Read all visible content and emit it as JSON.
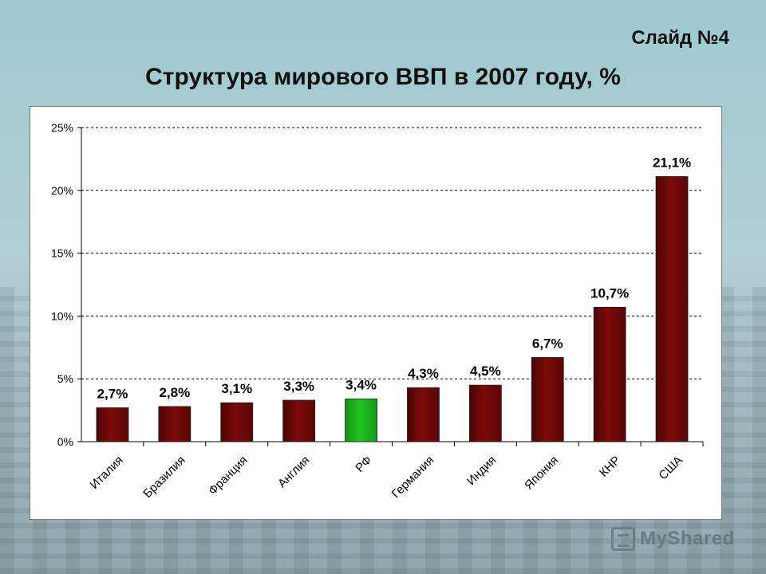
{
  "slide": {
    "number_label": "Слайд №4",
    "title": "Структура мирового ВВП в 2007 году, %"
  },
  "watermark": {
    "text": "MyShared",
    "icon": "presentation-icon"
  },
  "colors": {
    "bar": "#7d0a0a",
    "bar_highlight": "#22c322",
    "grid": "#000000"
  },
  "chart_data": {
    "type": "bar",
    "title": "Структура мирового ВВП в 2007 году, %",
    "categories": [
      "Италия",
      "Бразилия",
      "Франция",
      "Англия",
      "РФ",
      "Германия",
      "Индия",
      "Япония",
      "КНР",
      "США"
    ],
    "values": [
      2.7,
      2.8,
      3.1,
      3.3,
      3.4,
      4.3,
      4.5,
      6.7,
      10.7,
      21.1
    ],
    "value_labels": [
      "2,7%",
      "2,8%",
      "3,1%",
      "3,3%",
      "3,4%",
      "4,3%",
      "4,5%",
      "6,7%",
      "10,7%",
      "21,1%"
    ],
    "highlight_index": 4,
    "ylim": [
      0,
      25
    ],
    "yticks": [
      0,
      5,
      10,
      15,
      20,
      25
    ],
    "ytick_labels": [
      "0%",
      "5%",
      "10%",
      "15%",
      "20%",
      "25%"
    ],
    "grid": "horizontal-dashed",
    "legend": "none",
    "xlabel": "",
    "ylabel": ""
  }
}
